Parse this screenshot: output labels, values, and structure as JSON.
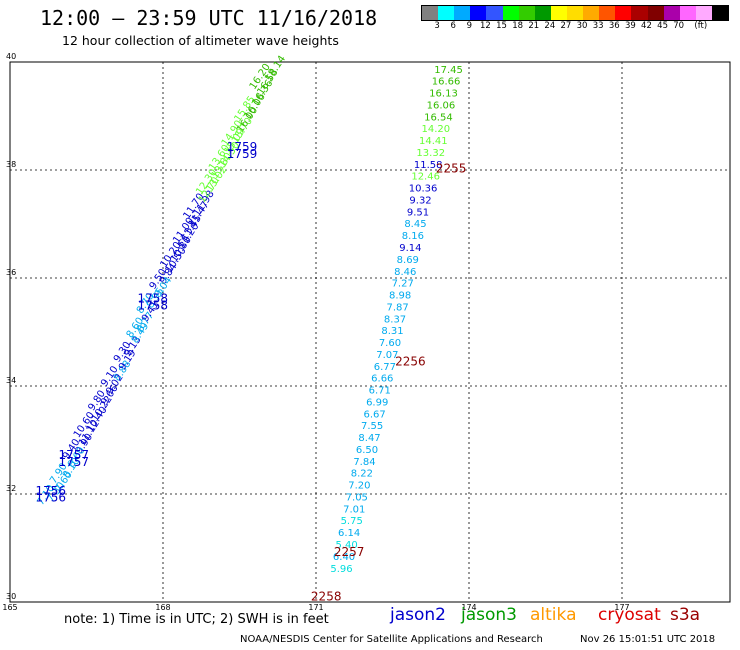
{
  "header": {
    "title": "12:00 – 23:59 UTC 11/16/2018",
    "subtitle": "12 hour collection of altimeter wave heights"
  },
  "colorbar": {
    "colors": [
      "#808080",
      "#00ffff",
      "#00aaff",
      "#0000ff",
      "#3355ff",
      "#00ff00",
      "#33cc00",
      "#009900",
      "#ffff00",
      "#ffdd00",
      "#ffaa00",
      "#ff5500",
      "#ff0000",
      "#aa0000",
      "#800000",
      "#aa00aa",
      "#ff66ff",
      "#ffaaff",
      "#000000"
    ],
    "labels": [
      "3",
      "6",
      "9",
      "12",
      "15",
      "18",
      "21",
      "24",
      "27",
      "30",
      "33",
      "36",
      "39",
      "42",
      "45",
      "70",
      "(ft)"
    ]
  },
  "map": {
    "x_ticks": [
      "165",
      "168",
      "171",
      "174",
      "177"
    ],
    "y_ticks": [
      "40",
      "38",
      "36",
      "34",
      "32",
      "30"
    ]
  },
  "tracks": {
    "east": [
      {
        "v": "17.45",
        "lon": 173.6,
        "lat": 39.8,
        "c": "#33bb00"
      },
      {
        "v": "16.66",
        "lon": 173.55,
        "lat": 39.58,
        "c": "#33bb00"
      },
      {
        "v": "16.13",
        "lon": 173.5,
        "lat": 39.36,
        "c": "#33bb00"
      },
      {
        "v": "16.06",
        "lon": 173.45,
        "lat": 39.14,
        "c": "#33bb00"
      },
      {
        "v": "16.54",
        "lon": 173.4,
        "lat": 38.92,
        "c": "#33bb00"
      },
      {
        "v": "14.20",
        "lon": 173.35,
        "lat": 38.7,
        "c": "#66ff33"
      },
      {
        "v": "14.41",
        "lon": 173.3,
        "lat": 38.48,
        "c": "#66ff33"
      },
      {
        "v": "13.32",
        "lon": 173.25,
        "lat": 38.26,
        "c": "#66ff33"
      },
      {
        "v": "11.58",
        "lon": 173.2,
        "lat": 38.04,
        "c": "#0000cc"
      },
      {
        "v": "12.46",
        "lon": 173.15,
        "lat": 37.82,
        "c": "#66ff33"
      },
      {
        "v": "10.36",
        "lon": 173.1,
        "lat": 37.6,
        "c": "#0000cc"
      },
      {
        "v": "9.32",
        "lon": 173.05,
        "lat": 37.38,
        "c": "#0000cc"
      },
      {
        "v": "9.51",
        "lon": 173.0,
        "lat": 37.16,
        "c": "#0000cc"
      },
      {
        "v": "8.45",
        "lon": 172.95,
        "lat": 36.94,
        "c": "#00aaee"
      },
      {
        "v": "8.16",
        "lon": 172.9,
        "lat": 36.72,
        "c": "#00aaee"
      },
      {
        "v": "9.14",
        "lon": 172.85,
        "lat": 36.5,
        "c": "#0000cc"
      },
      {
        "v": "8.69",
        "lon": 172.8,
        "lat": 36.28,
        "c": "#00aaee"
      },
      {
        "v": "8.46",
        "lon": 172.75,
        "lat": 36.06,
        "c": "#00aaee"
      },
      {
        "v": "7.27",
        "lon": 172.7,
        "lat": 35.84,
        "c": "#00aaee"
      },
      {
        "v": "8.98",
        "lon": 172.65,
        "lat": 35.62,
        "c": "#00aaee"
      },
      {
        "v": "7.87",
        "lon": 172.6,
        "lat": 35.4,
        "c": "#00aaee"
      },
      {
        "v": "8.37",
        "lon": 172.55,
        "lat": 35.18,
        "c": "#00aaee"
      },
      {
        "v": "8.31",
        "lon": 172.5,
        "lat": 34.96,
        "c": "#00aaee"
      },
      {
        "v": "7.60",
        "lon": 172.45,
        "lat": 34.74,
        "c": "#00aaee"
      },
      {
        "v": "7.07",
        "lon": 172.4,
        "lat": 34.52,
        "c": "#00aaee"
      },
      {
        "v": "6.77",
        "lon": 172.35,
        "lat": 34.3,
        "c": "#00aaee"
      },
      {
        "v": "6.66",
        "lon": 172.3,
        "lat": 34.08,
        "c": "#00aaee"
      },
      {
        "v": "6.71",
        "lon": 172.25,
        "lat": 33.86,
        "c": "#00aaee"
      },
      {
        "v": "6.99",
        "lon": 172.2,
        "lat": 33.64,
        "c": "#00aaee"
      },
      {
        "v": "6.67",
        "lon": 172.15,
        "lat": 33.42,
        "c": "#00aaee"
      },
      {
        "v": "7.55",
        "lon": 172.1,
        "lat": 33.2,
        "c": "#00aaee"
      },
      {
        "v": "8.47",
        "lon": 172.05,
        "lat": 32.98,
        "c": "#00aaee"
      },
      {
        "v": "6.50",
        "lon": 172.0,
        "lat": 32.76,
        "c": "#00aaee"
      },
      {
        "v": "7.84",
        "lon": 171.95,
        "lat": 32.54,
        "c": "#00aaee"
      },
      {
        "v": "8.22",
        "lon": 171.9,
        "lat": 32.32,
        "c": "#00aaee"
      },
      {
        "v": "7.20",
        "lon": 171.85,
        "lat": 32.1,
        "c": "#00aaee"
      },
      {
        "v": "7.05",
        "lon": 171.8,
        "lat": 31.88,
        "c": "#00aaee"
      },
      {
        "v": "7.01",
        "lon": 171.75,
        "lat": 31.66,
        "c": "#00aaee"
      },
      {
        "v": "5.75",
        "lon": 171.7,
        "lat": 31.44,
        "c": "#00dddd"
      },
      {
        "v": "6.14",
        "lon": 171.65,
        "lat": 31.22,
        "c": "#00aaee"
      },
      {
        "v": "5.40",
        "lon": 171.6,
        "lat": 31.0,
        "c": "#00dddd"
      },
      {
        "v": "6.40",
        "lon": 171.55,
        "lat": 30.78,
        "c": "#00aaee"
      },
      {
        "v": "5.96",
        "lon": 171.5,
        "lat": 30.56,
        "c": "#00dddd"
      }
    ],
    "west_a": [
      {
        "v": "18.14",
        "lon": 170.25,
        "lat": 39.85,
        "c": "#33bb00"
      },
      {
        "v": "16.36",
        "lon": 170.0,
        "lat": 39.4,
        "c": "#33bb00"
      },
      {
        "v": "16.00",
        "lon": 169.7,
        "lat": 38.9,
        "c": "#33bb00"
      },
      {
        "v": "15.09",
        "lon": 169.45,
        "lat": 38.5,
        "c": "#66ff33"
      },
      {
        "v": "13.80",
        "lon": 169.2,
        "lat": 38.05,
        "c": "#66ff33"
      },
      {
        "v": "12.70",
        "lon": 168.95,
        "lat": 37.6,
        "c": "#66ff33"
      },
      {
        "v": "11.47",
        "lon": 168.75,
        "lat": 37.15,
        "c": "#0000cc"
      },
      {
        "v": "11.20",
        "lon": 168.55,
        "lat": 36.75,
        "c": "#0000cc"
      },
      {
        "v": "10.50",
        "lon": 168.3,
        "lat": 36.3,
        "c": "#0000cc"
      },
      {
        "v": "9.04",
        "lon": 168.05,
        "lat": 35.8,
        "c": "#00aaee"
      },
      {
        "v": "9.41",
        "lon": 167.8,
        "lat": 35.35,
        "c": "#0000cc"
      },
      {
        "v": "8.49",
        "lon": 167.6,
        "lat": 34.95,
        "c": "#00aaee"
      },
      {
        "v": "9.19",
        "lon": 167.35,
        "lat": 34.45,
        "c": "#0000cc"
      },
      {
        "v": "9.02",
        "lon": 167.1,
        "lat": 34.0,
        "c": "#0000cc"
      },
      {
        "v": "10.22",
        "lon": 166.85,
        "lat": 33.55,
        "c": "#0000cc"
      },
      {
        "v": "11.12",
        "lon": 166.6,
        "lat": 33.1,
        "c": "#0000cc"
      },
      {
        "v": "8.60",
        "lon": 166.35,
        "lat": 32.65,
        "c": "#00aaee"
      },
      {
        "v": "7.60",
        "lon": 166.1,
        "lat": 32.2,
        "c": "#00aaee"
      }
    ],
    "west_b": [
      {
        "v": "16.58",
        "lon": 170.1,
        "lat": 39.6,
        "c": "#33bb00"
      },
      {
        "v": "16.06",
        "lon": 169.85,
        "lat": 39.15,
        "c": "#33bb00"
      },
      {
        "v": "15.70",
        "lon": 169.6,
        "lat": 38.7,
        "c": "#66ff33"
      },
      {
        "v": "14.50",
        "lon": 169.35,
        "lat": 38.25,
        "c": "#66ff33"
      },
      {
        "v": "13.02",
        "lon": 169.1,
        "lat": 37.8,
        "c": "#66ff33"
      },
      {
        "v": "11.98",
        "lon": 168.85,
        "lat": 37.35,
        "c": "#0000cc"
      },
      {
        "v": "11.45",
        "lon": 168.6,
        "lat": 36.9,
        "c": "#0000cc"
      },
      {
        "v": "10.80",
        "lon": 168.4,
        "lat": 36.5,
        "c": "#0000cc"
      },
      {
        "v": "9.84",
        "lon": 168.15,
        "lat": 36.05,
        "c": "#0000cc"
      },
      {
        "v": "8.95",
        "lon": 167.9,
        "lat": 35.6,
        "c": "#00aaee"
      },
      {
        "v": "8.77",
        "lon": 167.7,
        "lat": 35.15,
        "c": "#00aaee"
      },
      {
        "v": "9.13",
        "lon": 167.45,
        "lat": 34.7,
        "c": "#0000cc"
      },
      {
        "v": "8.88",
        "lon": 167.25,
        "lat": 34.25,
        "c": "#00aaee"
      },
      {
        "v": "9.66",
        "lon": 167.0,
        "lat": 33.8,
        "c": "#0000cc"
      },
      {
        "v": "10.40",
        "lon": 166.75,
        "lat": 33.35,
        "c": "#0000cc"
      },
      {
        "v": "9.90",
        "lon": 166.5,
        "lat": 32.9,
        "c": "#0000cc"
      },
      {
        "v": "8.10",
        "lon": 166.25,
        "lat": 32.45,
        "c": "#00aaee"
      },
      {
        "v": "7.30",
        "lon": 165.95,
        "lat": 32.0,
        "c": "#00aaee"
      }
    ],
    "west_c": [
      {
        "v": "16.20",
        "lon": 169.95,
        "lat": 39.7,
        "c": "#33bb00"
      },
      {
        "v": "15.85",
        "lon": 169.65,
        "lat": 39.1,
        "c": "#66ff33"
      },
      {
        "v": "14.90",
        "lon": 169.4,
        "lat": 38.65,
        "c": "#66ff33"
      },
      {
        "v": "13.60",
        "lon": 169.15,
        "lat": 38.2,
        "c": "#66ff33"
      },
      {
        "v": "12.30",
        "lon": 168.9,
        "lat": 37.75,
        "c": "#66ff33"
      },
      {
        "v": "11.70",
        "lon": 168.65,
        "lat": 37.3,
        "c": "#0000cc"
      },
      {
        "v": "11.00",
        "lon": 168.45,
        "lat": 36.85,
        "c": "#0000cc"
      },
      {
        "v": "10.20",
        "lon": 168.2,
        "lat": 36.4,
        "c": "#0000cc"
      },
      {
        "v": "9.50",
        "lon": 167.95,
        "lat": 35.95,
        "c": "#0000cc"
      },
      {
        "v": "8.70",
        "lon": 167.7,
        "lat": 35.5,
        "c": "#00aaee"
      },
      {
        "v": "8.60",
        "lon": 167.5,
        "lat": 35.05,
        "c": "#00aaee"
      },
      {
        "v": "9.30",
        "lon": 167.25,
        "lat": 34.6,
        "c": "#0000cc"
      },
      {
        "v": "9.10",
        "lon": 167.0,
        "lat": 34.15,
        "c": "#0000cc"
      },
      {
        "v": "9.80",
        "lon": 166.75,
        "lat": 33.7,
        "c": "#0000cc"
      },
      {
        "v": "10.60",
        "lon": 166.5,
        "lat": 33.25,
        "c": "#0000cc"
      },
      {
        "v": "9.40",
        "lon": 166.25,
        "lat": 32.8,
        "c": "#0000cc"
      },
      {
        "v": "7.90",
        "lon": 166.0,
        "lat": 32.35,
        "c": "#00aaee"
      },
      {
        "v": "7.10",
        "lon": 165.75,
        "lat": 31.95,
        "c": "#00aaee"
      }
    ]
  },
  "pass_times": [
    {
      "t": "2255",
      "lon": 173.65,
      "lat": 37.95,
      "c": "#880000"
    },
    {
      "t": "2256",
      "lon": 172.85,
      "lat": 34.38,
      "c": "#880000"
    },
    {
      "t": "2257",
      "lon": 171.65,
      "lat": 30.85,
      "c": "#880000"
    },
    {
      "t": "2258",
      "lon": 171.2,
      "lat": 30.03,
      "c": "#880000"
    },
    {
      "t": "1759",
      "lon": 169.55,
      "lat": 38.35,
      "c": "#0000cc"
    },
    {
      "t": "1759",
      "lon": 169.55,
      "lat": 38.22,
      "c": "#0000cc"
    },
    {
      "t": "1758",
      "lon": 167.8,
      "lat": 35.55,
      "c": "#0000cc"
    },
    {
      "t": "1758",
      "lon": 167.8,
      "lat": 35.42,
      "c": "#0000cc"
    },
    {
      "t": "1757",
      "lon": 166.25,
      "lat": 32.65,
      "c": "#0000cc"
    },
    {
      "t": "1757",
      "lon": 166.25,
      "lat": 32.52,
      "c": "#0000cc"
    },
    {
      "t": "1756",
      "lon": 165.8,
      "lat": 31.98,
      "c": "#0000cc"
    },
    {
      "t": "1756",
      "lon": 165.8,
      "lat": 31.86,
      "c": "#0000cc"
    }
  ],
  "footer": {
    "note": "note: 1) Time is in UTC; 2) SWH is in feet",
    "legend": [
      {
        "name": "jason2",
        "color": "#0000cc"
      },
      {
        "name": "jason3",
        "color": "#009900"
      },
      {
        "name": "altika",
        "color": "#ff9900"
      },
      {
        "name": "cryosat",
        "color": "#dd0000"
      },
      {
        "name": "s3a",
        "color": "#990000"
      }
    ],
    "credit": "NOAA/NESDIS Center for Satellite Applications and Research",
    "timestamp": "Nov 26 15:01:51 UTC 2018"
  }
}
